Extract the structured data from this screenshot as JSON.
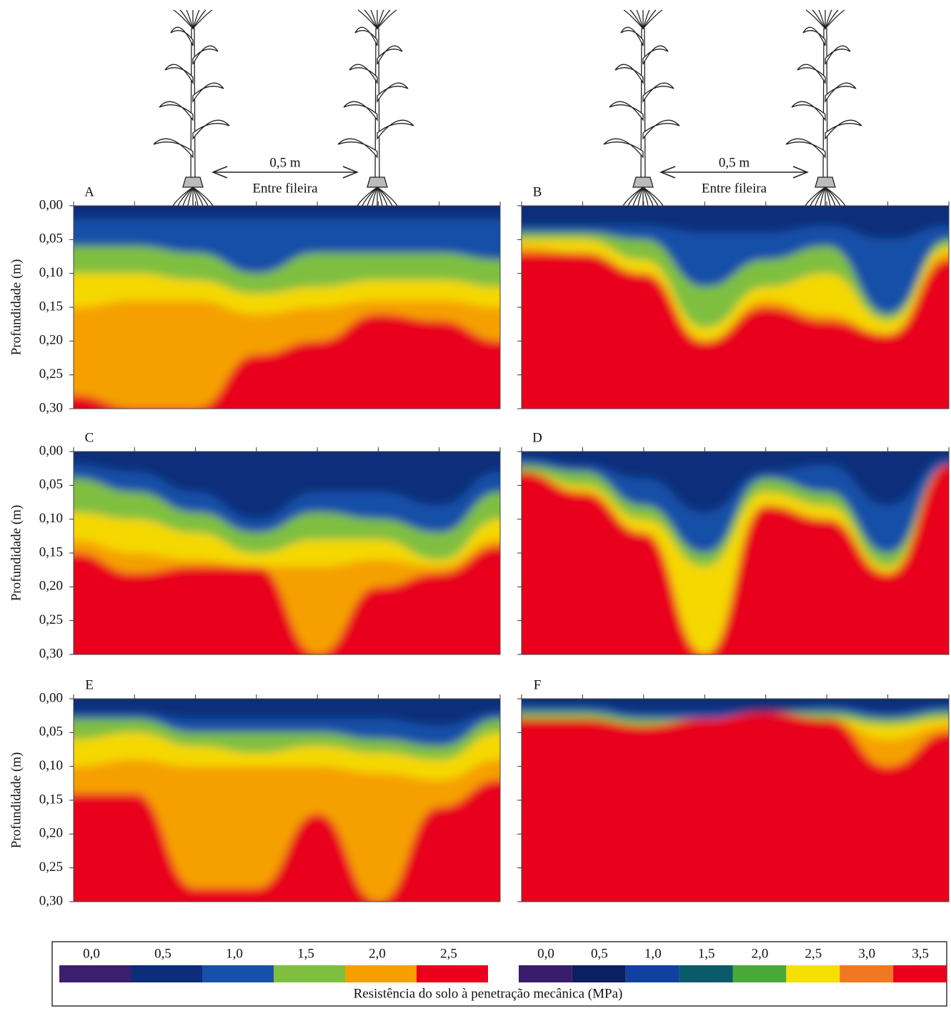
{
  "figure": {
    "annotations": [
      {
        "distance": "0,5 m",
        "label": "Entre fileira"
      },
      {
        "distance": "0,5 m",
        "label": "Entre fileira"
      }
    ],
    "panels": [
      "A",
      "B",
      "C",
      "D",
      "E",
      "F"
    ],
    "y_axis_label": "Profundidade (m)",
    "ylim": [
      0,
      0.3
    ],
    "yticks": [
      {
        "value": 0,
        "label": "0,00"
      },
      {
        "value": 0.05,
        "label": "0,05"
      },
      {
        "value": 0.1,
        "label": "0,10"
      },
      {
        "value": 0.15,
        "label": "0,15"
      },
      {
        "value": 0.2,
        "label": "0,20"
      },
      {
        "value": 0.25,
        "label": "0,25"
      },
      {
        "value": 0.3,
        "label": "0,30"
      }
    ],
    "legends": [
      {
        "ticks": [
          {
            "value": 0,
            "label": "0,0"
          },
          {
            "value": 0.5,
            "label": "0,5"
          },
          {
            "value": 1,
            "label": "1,0"
          },
          {
            "value": 1.5,
            "label": "1,5"
          },
          {
            "value": 2,
            "label": "2,0"
          },
          {
            "value": 2.5,
            "label": "2,5"
          }
        ],
        "colors": [
          "#3b1f6e",
          "#0d2d7a",
          "#1750a8",
          "#7fbf3f",
          "#f5a000",
          "#e8001c"
        ]
      },
      {
        "ticks": [
          {
            "value": 0,
            "label": "0,0"
          },
          {
            "value": 0.5,
            "label": "0,5"
          },
          {
            "value": 1,
            "label": "1,0"
          },
          {
            "value": 1.5,
            "label": "1,5"
          },
          {
            "value": 2,
            "label": "2,0"
          },
          {
            "value": 2.5,
            "label": "2,5"
          },
          {
            "value": 3,
            "label": "3,0"
          },
          {
            "value": 3.5,
            "label": "3,5"
          }
        ],
        "colors": [
          "#3a1c6c",
          "#0a2060",
          "#1040a0",
          "#0b5a6a",
          "#4aa83a",
          "#f5e000",
          "#f07820",
          "#e8001c"
        ]
      }
    ],
    "legend_title": "Resistência do solo à penetração mecânica (MPa)"
  }
}
